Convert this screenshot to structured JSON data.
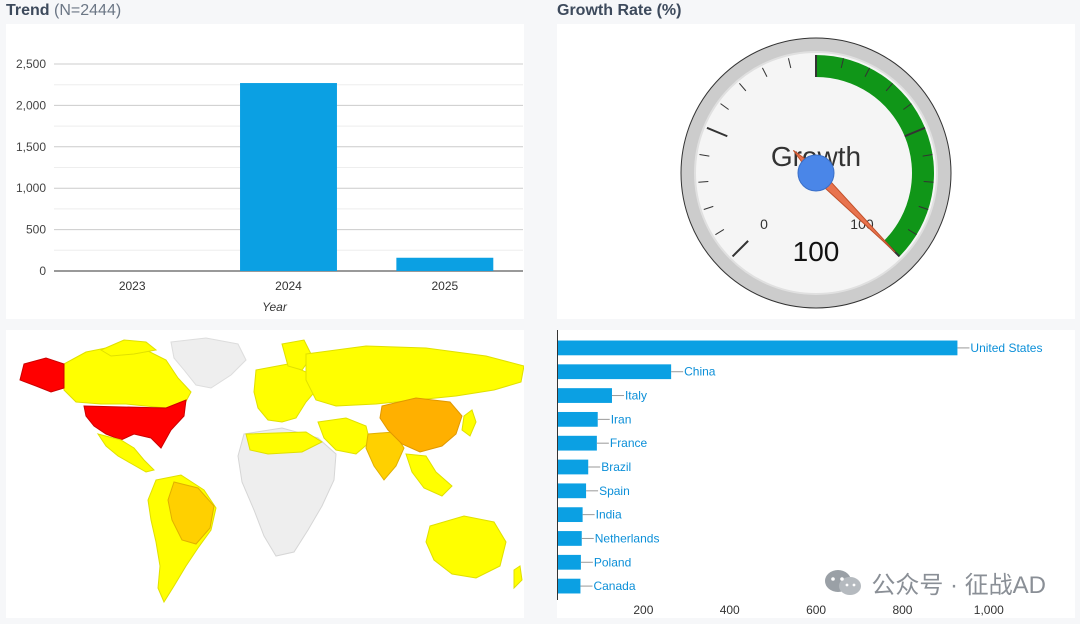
{
  "trend": {
    "title": "Trend",
    "subtitle": "(N=2444)"
  },
  "growth": {
    "title": "Growth Rate (%)"
  },
  "chart_data": [
    {
      "type": "bar",
      "categories": [
        "2023",
        "2024",
        "2025"
      ],
      "values": [
        0,
        2270,
        160
      ],
      "xlabel": "Year",
      "ylabel": "",
      "ylim": [
        0,
        2500
      ],
      "yticks": [
        "0",
        "500",
        "1,000",
        "1,500",
        "2,000",
        "2,500"
      ],
      "grid": true,
      "color": "#0ba0e3"
    },
    {
      "type": "gauge",
      "label": "Growth",
      "value": 100,
      "value_label": "100",
      "min": 0,
      "max": 100,
      "range_labels": [
        "0",
        "100"
      ],
      "green_band": [
        0,
        100
      ],
      "needle_color": "#e8734e",
      "band_color": "#109618"
    },
    {
      "type": "bar-horizontal",
      "categories": [
        "United States",
        "China",
        "Italy",
        "Iran",
        "France",
        "Brazil",
        "Spain",
        "India",
        "Netherlands",
        "Poland",
        "Canada"
      ],
      "values": [
        925,
        262,
        125,
        92,
        90,
        70,
        65,
        57,
        55,
        53,
        52
      ],
      "xlim": [
        0,
        1100
      ],
      "xticks": [
        "200",
        "400",
        "600",
        "800",
        "1,000"
      ],
      "color": "#0ba0e3",
      "label_color": "#0b8fd8"
    }
  ],
  "map": {
    "legend": "none",
    "colors": {
      "high": "#ff0000",
      "mid": "#ffb000",
      "low": "#ffff00",
      "none": "#eeeeee"
    }
  },
  "watermark": {
    "text": "公众号 · 征战AD"
  }
}
